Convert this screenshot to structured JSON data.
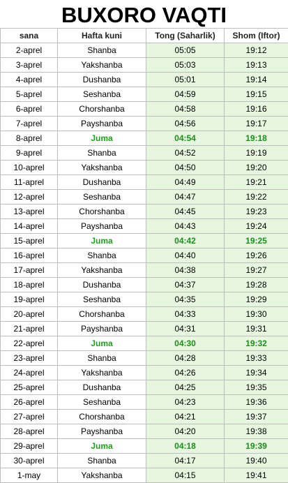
{
  "title": "BUXORO VAQTI",
  "headers": [
    "sana",
    "Hafta kuni",
    "Tong (Saharlik)",
    "Shom (Iftor)"
  ],
  "colors": {
    "time_bg": "#e6f6df",
    "friday": "#1aa31a"
  },
  "rows": [
    {
      "date": "2-aprel",
      "day": "Shanba",
      "tong": "05:05",
      "shom": "19:12"
    },
    {
      "date": "3-aprel",
      "day": "Yakshanba",
      "tong": "05:03",
      "shom": "19:13"
    },
    {
      "date": "4-aprel",
      "day": "Dushanba",
      "tong": "05:01",
      "shom": "19:14"
    },
    {
      "date": "5-aprel",
      "day": "Seshanba",
      "tong": "04:59",
      "shom": "19:15"
    },
    {
      "date": "6-aprel",
      "day": "Chorshanba",
      "tong": "04:58",
      "shom": "19:16"
    },
    {
      "date": "7-aprel",
      "day": "Payshanba",
      "tong": "04:56",
      "shom": "19:17"
    },
    {
      "date": "8-aprel",
      "day": "Juma",
      "tong": "04:54",
      "shom": "19:18"
    },
    {
      "date": "9-aprel",
      "day": "Shanba",
      "tong": "04:52",
      "shom": "19:19"
    },
    {
      "date": "10-aprel",
      "day": "Yakshanba",
      "tong": "04:50",
      "shom": "19:20"
    },
    {
      "date": "11-aprel",
      "day": "Dushanba",
      "tong": "04:49",
      "shom": "19:21"
    },
    {
      "date": "12-aprel",
      "day": "Seshanba",
      "tong": "04:47",
      "shom": "19:22"
    },
    {
      "date": "13-aprel",
      "day": "Chorshanba",
      "tong": "04:45",
      "shom": "19:23"
    },
    {
      "date": "14-aprel",
      "day": "Payshanba",
      "tong": "04:43",
      "shom": "19:24"
    },
    {
      "date": "15-aprel",
      "day": "Juma",
      "tong": "04:42",
      "shom": "19:25"
    },
    {
      "date": "16-aprel",
      "day": "Shanba",
      "tong": "04:40",
      "shom": "19:26"
    },
    {
      "date": "17-aprel",
      "day": "Yakshanba",
      "tong": "04:38",
      "shom": "19:27"
    },
    {
      "date": "18-aprel",
      "day": "Dushanba",
      "tong": "04:37",
      "shom": "19:28"
    },
    {
      "date": "19-aprel",
      "day": "Seshanba",
      "tong": "04:35",
      "shom": "19:29"
    },
    {
      "date": "20-aprel",
      "day": "Chorshanba",
      "tong": "04:33",
      "shom": "19:30"
    },
    {
      "date": "21-aprel",
      "day": "Payshanba",
      "tong": "04:31",
      "shom": "19:31"
    },
    {
      "date": "22-aprel",
      "day": "Juma",
      "tong": "04:30",
      "shom": "19:32"
    },
    {
      "date": "23-aprel",
      "day": "Shanba",
      "tong": "04:28",
      "shom": "19:33"
    },
    {
      "date": "24-aprel",
      "day": "Yakshanba",
      "tong": "04:26",
      "shom": "19:34"
    },
    {
      "date": "25-aprel",
      "day": "Dushanba",
      "tong": "04:25",
      "shom": "19:35"
    },
    {
      "date": "26-aprel",
      "day": "Seshanba",
      "tong": "04:23",
      "shom": "19:36"
    },
    {
      "date": "27-aprel",
      "day": "Chorshanba",
      "tong": "04:21",
      "shom": "19:37"
    },
    {
      "date": "28-aprel",
      "day": "Payshanba",
      "tong": "04:20",
      "shom": "19:38"
    },
    {
      "date": "29-aprel",
      "day": "Juma",
      "tong": "04:18",
      "shom": "19:39"
    },
    {
      "date": "30-aprel",
      "day": "Shanba",
      "tong": "04:17",
      "shom": "19:40"
    },
    {
      "date": "1-may",
      "day": "Yakshanba",
      "tong": "04:15",
      "shom": "19:41"
    }
  ]
}
